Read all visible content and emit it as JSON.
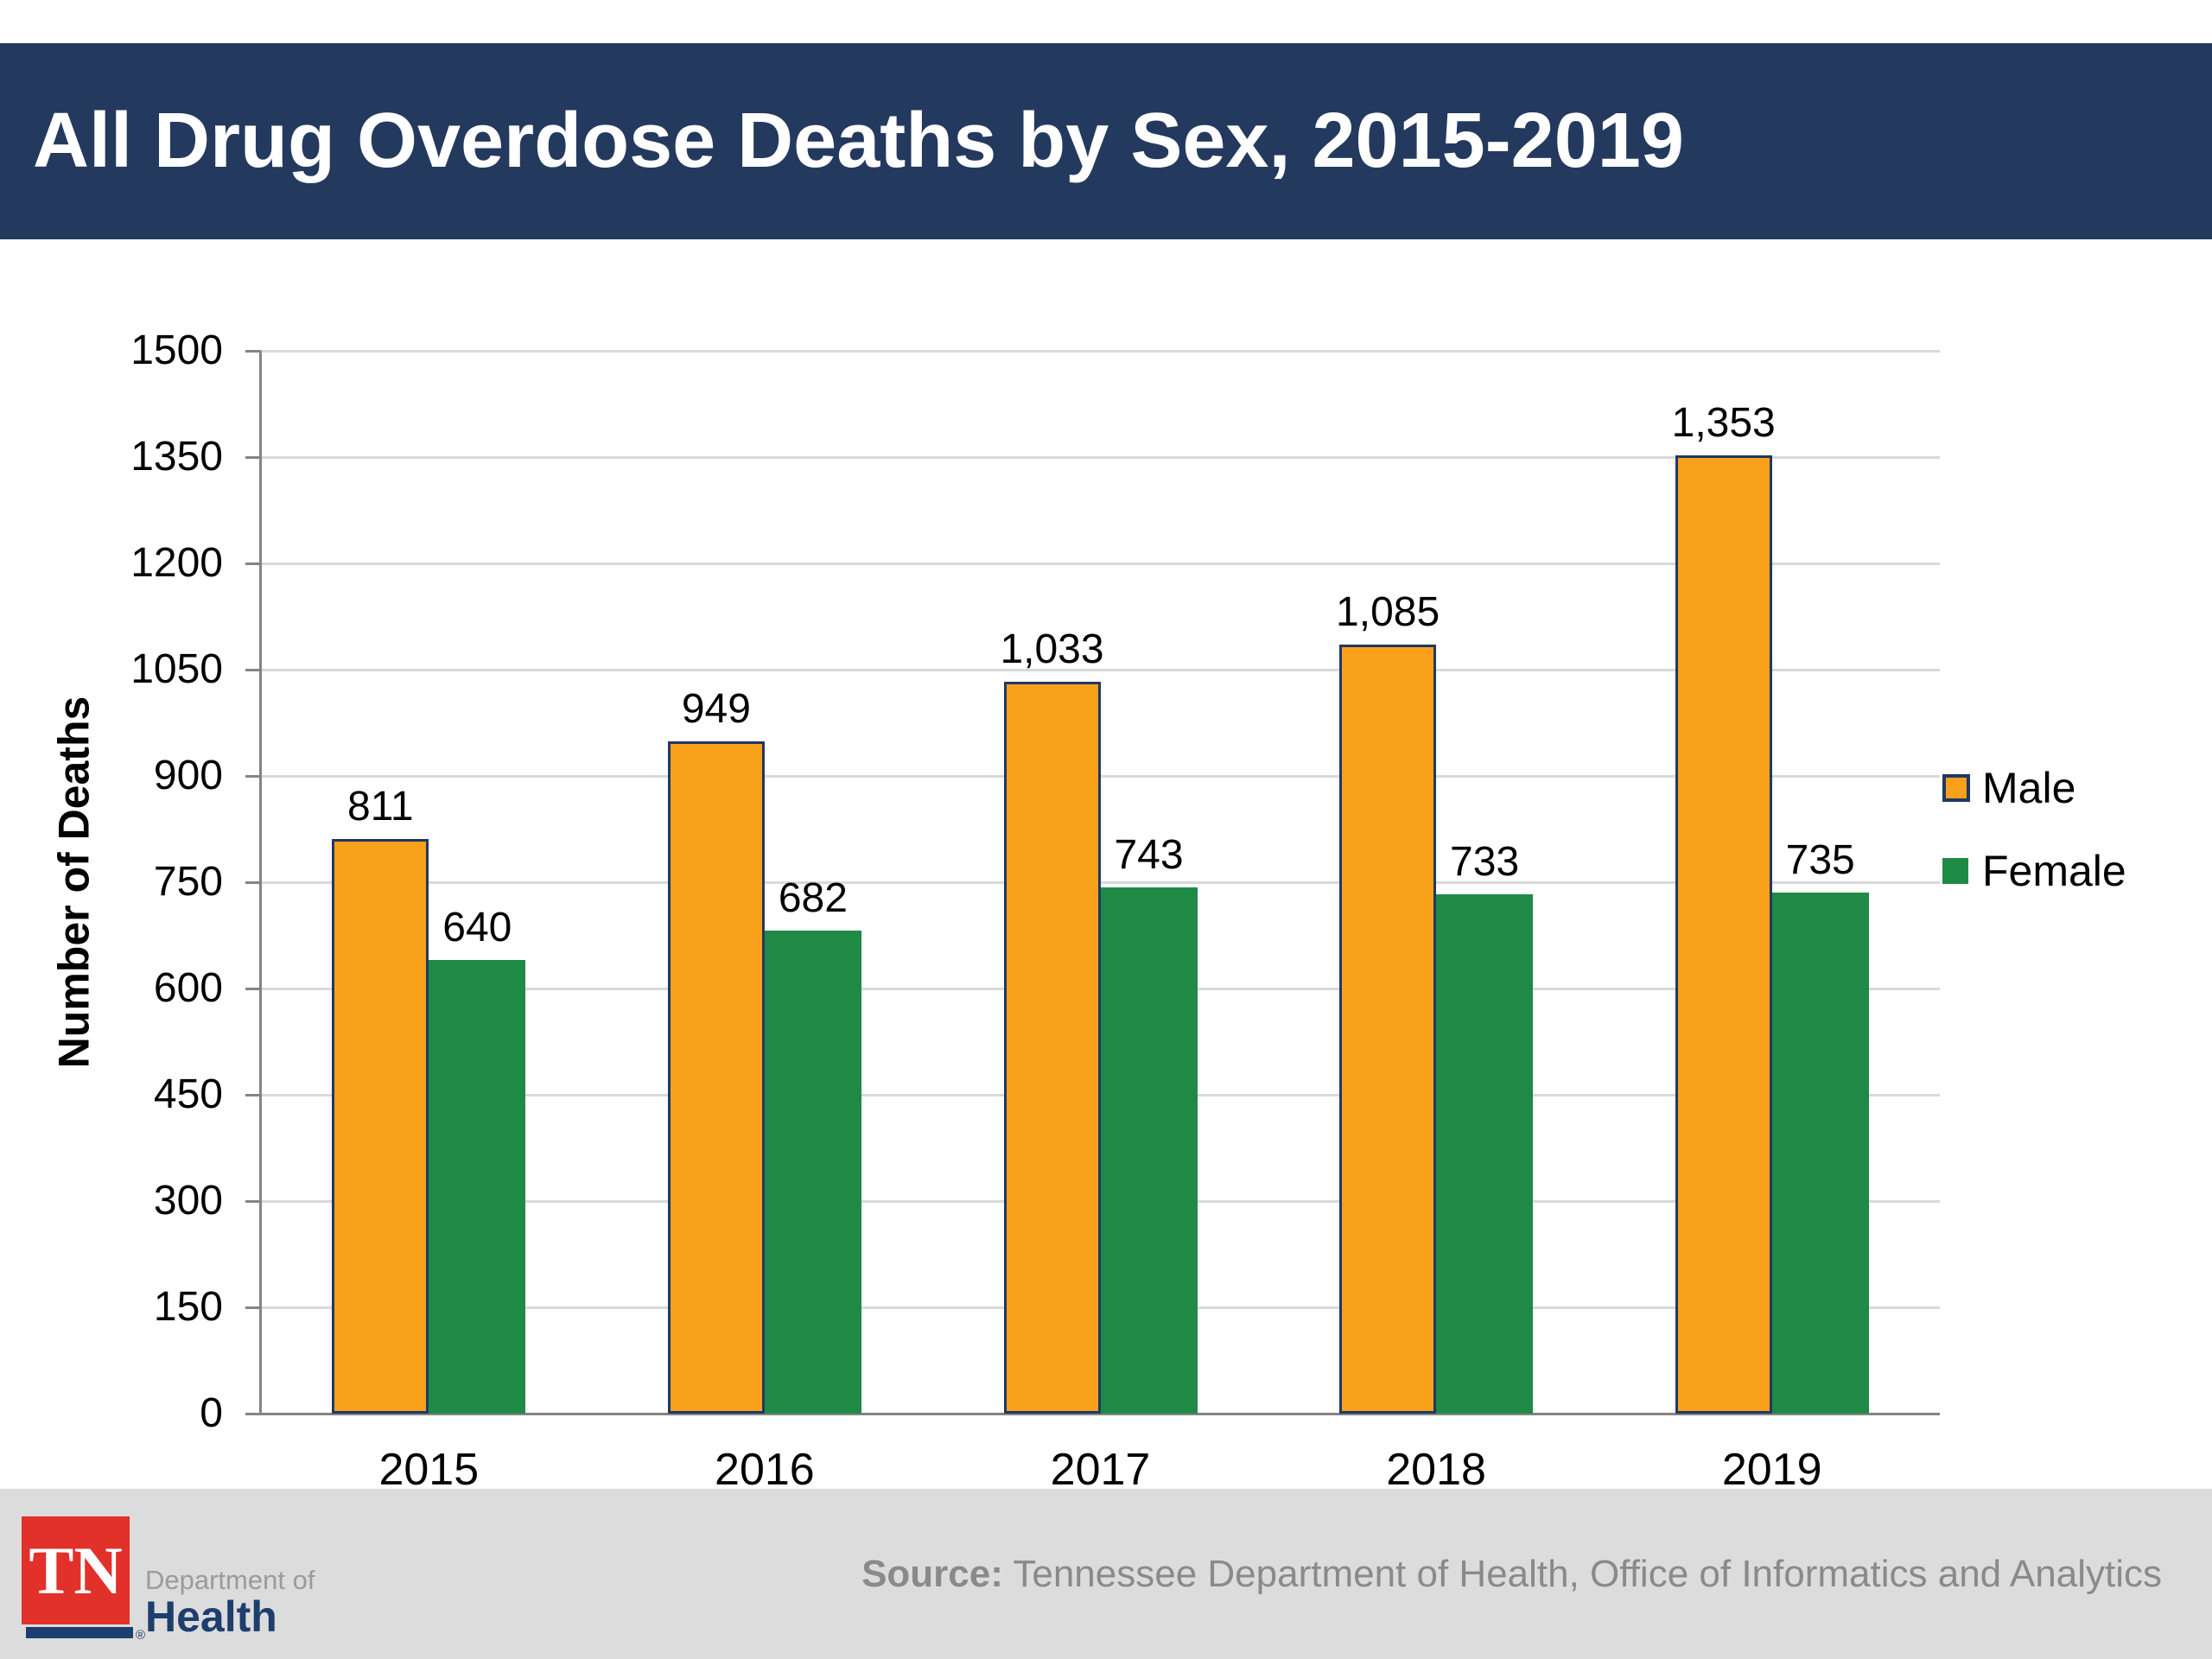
{
  "header": {
    "title": "All Drug Overdose Deaths by Sex, 2015-2019",
    "bg_color": "#24395E"
  },
  "chart_data": {
    "type": "bar",
    "title": "All Drug Overdose Deaths by Sex, 2015-2019",
    "categories": [
      "2015",
      "2016",
      "2017",
      "2018",
      "2019"
    ],
    "series": [
      {
        "name": "Male",
        "color": "#F9A11B",
        "border_color": "#203864",
        "values": [
          811,
          949,
          1033,
          1085,
          1353
        ],
        "labels": [
          "811",
          "949",
          "1,033",
          "1,085",
          "1,353"
        ]
      },
      {
        "name": "Female",
        "color": "#1E8A45",
        "border_color": "#1E8A45",
        "values": [
          640,
          682,
          743,
          733,
          735
        ],
        "labels": [
          "640",
          "682",
          "743",
          "733",
          "735"
        ]
      }
    ],
    "xlabel": "",
    "ylabel": "Number of Deaths",
    "ylim": [
      0,
      1500
    ],
    "ytick_step": 150,
    "grid": true,
    "legend_position": "right",
    "grid_color": "#D9D9D9",
    "axis_color": "#848484",
    "label_color": "#000000"
  },
  "footer": {
    "bg_color": "#DCDCDC",
    "logo": {
      "tn": "TN",
      "reg": "®",
      "dept": "Department of",
      "health": "Health",
      "red": "#E1312A",
      "navy": "#1D3E6E"
    },
    "source_label": "Source:",
    "source_text": "Tennessee Department of Health, Office of Informatics and Analytics"
  }
}
